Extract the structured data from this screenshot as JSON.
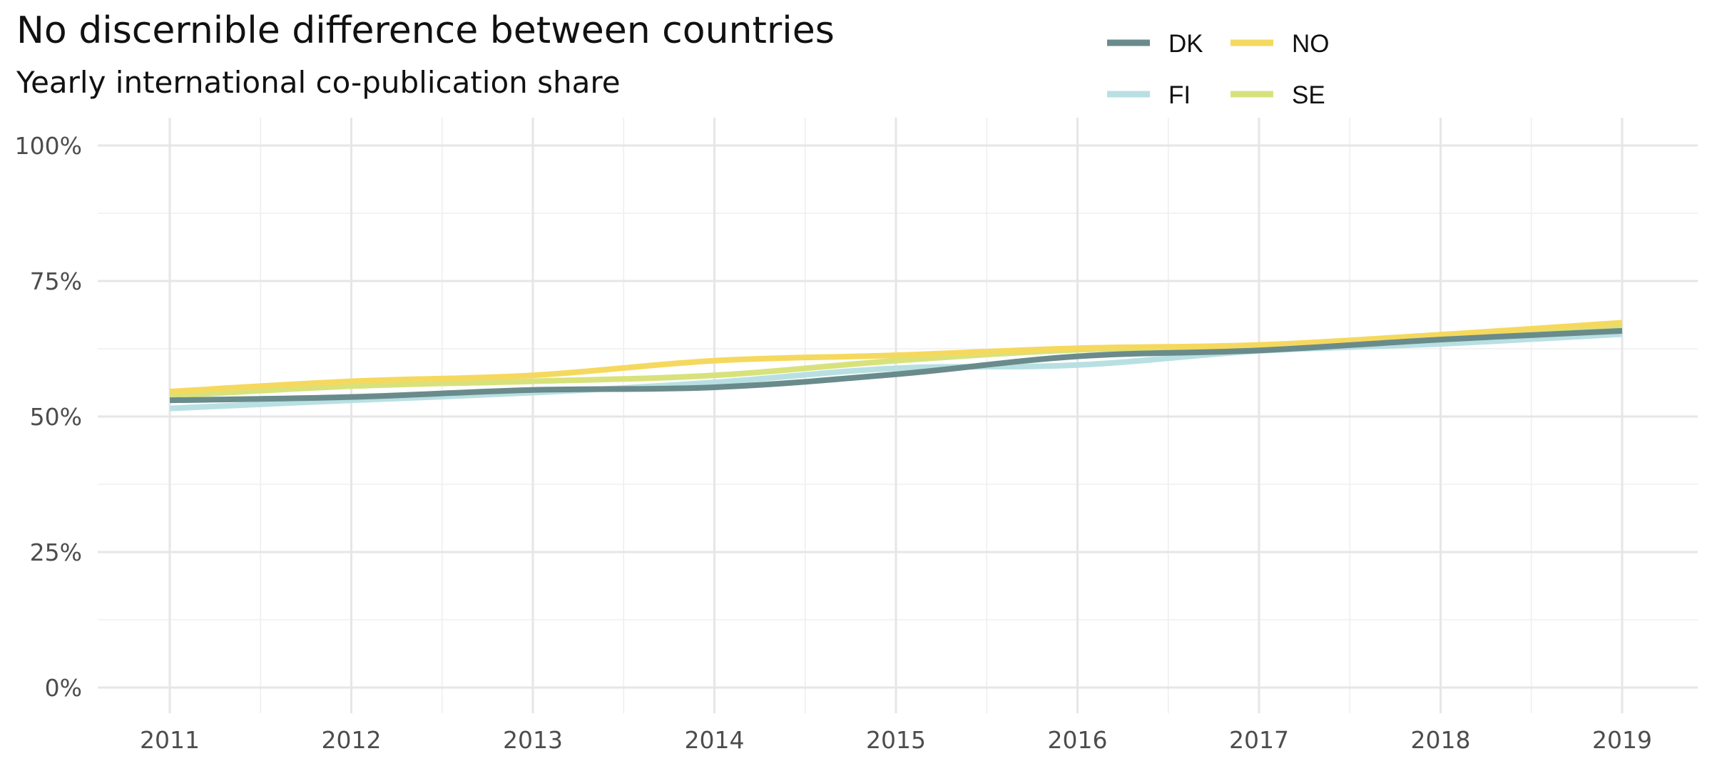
{
  "chart_data": {
    "type": "line",
    "title": "No discernible difference between countries",
    "subtitle": "Yearly international co-publication share",
    "xlabel": "",
    "ylabel": "",
    "x": [
      2011,
      2012,
      2013,
      2014,
      2015,
      2016,
      2017,
      2018,
      2019
    ],
    "x_tick_labels": [
      "2011",
      "2012",
      "2013",
      "2014",
      "2015",
      "2016",
      "2017",
      "2018",
      "2019"
    ],
    "ylim": [
      0,
      1
    ],
    "y_ticks": [
      0,
      0.25,
      0.5,
      0.75,
      1.0
    ],
    "y_tick_labels": [
      "0%",
      "25%",
      "50%",
      "75%",
      "100%"
    ],
    "grid": true,
    "legend_position": "top-right",
    "series": [
      {
        "name": "DK",
        "color": "#6a8b8c",
        "values": [
          0.53,
          0.536,
          0.549,
          0.554,
          0.578,
          0.611,
          0.622,
          0.642,
          0.658
        ]
      },
      {
        "name": "FI",
        "color": "#b8e0e3",
        "values": [
          0.515,
          0.53,
          0.544,
          0.563,
          0.589,
          0.595,
          0.621,
          0.634,
          0.652
        ]
      },
      {
        "name": "NO",
        "color": "#f5d95e",
        "values": [
          0.546,
          0.565,
          0.576,
          0.603,
          0.613,
          0.626,
          0.632,
          0.651,
          0.673
        ]
      },
      {
        "name": "SE",
        "color": "#d8e27c",
        "values": [
          0.538,
          0.556,
          0.565,
          0.576,
          0.603,
          0.623,
          0.631,
          0.649,
          0.665
        ]
      }
    ],
    "legend_order": [
      "DK",
      "NO",
      "FI",
      "SE"
    ]
  }
}
